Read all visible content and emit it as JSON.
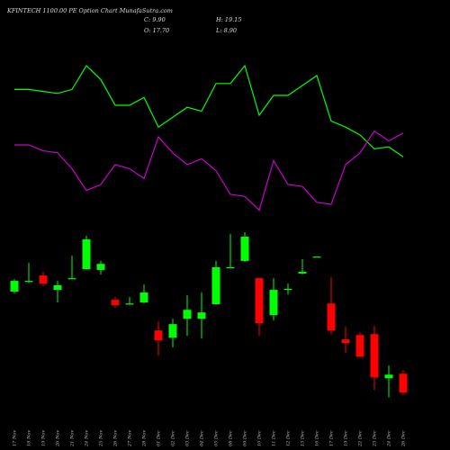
{
  "chart_data": {
    "type": "candlestick",
    "title": "KFINTECH 1100.00 PE Option Chart MunafaSutra.com",
    "summary": [
      "C: 9.90",
      "H: 19.15",
      "O: 17.70",
      "L: 8.90"
    ],
    "categories": [
      "17 Nov",
      "18 Nov",
      "19 Nov",
      "20 Nov",
      "21 Nov",
      "24 Nov",
      "25 Nov",
      "26 Nov",
      "27 Nov",
      "28 Nov",
      "01 Dec",
      "02 Dec",
      "03 Dec",
      "04 Dec",
      "05 Dec",
      "08 Dec",
      "09 Dec",
      "10 Dec",
      "11 Dec",
      "12 Dec",
      "15 Dec",
      "16 Dec",
      "17 Dec",
      "19 Dec",
      "22 Dec",
      "23 Dec",
      "24 Dec",
      "26 Dec"
    ],
    "open": [
      51.5,
      55.5,
      58.1,
      52.2,
      56.6,
      60.7,
      60.4,
      48.1,
      46.3,
      47.0,
      35.5,
      32.5,
      40.3,
      40.3,
      46.3,
      61.2,
      64.1,
      57.0,
      41.8,
      52.2,
      58.9,
      65.6,
      46.6,
      31.8,
      33.6,
      34.0,
      15.8,
      17.7
    ],
    "close": [
      55.9,
      55.9,
      54.8,
      54.1,
      57.0,
      73.0,
      62.9,
      45.9,
      46.6,
      51.1,
      31.4,
      38.1,
      44.0,
      42.9,
      61.5,
      61.5,
      74.1,
      38.5,
      52.2,
      52.6,
      59.6,
      65.9,
      35.5,
      30.3,
      24.7,
      16.2,
      17.3,
      9.9
    ],
    "high": [
      56.6,
      63.3,
      59.6,
      55.9,
      66.3,
      74.5,
      64.1,
      49.2,
      49.2,
      54.4,
      39.2,
      40.3,
      50.0,
      51.1,
      64.1,
      75.2,
      75.9,
      57.0,
      57.0,
      54.8,
      64.8,
      65.9,
      57.4,
      37.0,
      34.8,
      37.4,
      21.0,
      19.15
    ],
    "low": [
      50.7,
      55.2,
      53.7,
      47.0,
      56.6,
      60.4,
      58.5,
      44.8,
      46.0,
      46.6,
      25.1,
      28.5,
      33.3,
      32.2,
      46.0,
      61.2,
      63.7,
      33.3,
      39.6,
      50.3,
      58.5,
      65.6,
      34.0,
      26.2,
      24.4,
      11.0,
      8.0,
      8.9
    ],
    "up_color": "#00ff00",
    "down_color": "#ff0000",
    "ylim": [
      0,
      100
    ],
    "lines": [
      {
        "color": "#00ff00",
        "values": [
          73,
          73,
          72,
          71,
          73,
          85,
          78,
          65,
          65,
          69,
          54,
          59,
          64,
          62,
          76,
          76,
          85,
          60,
          70,
          70,
          75,
          80,
          57,
          54,
          50,
          43,
          44,
          39
        ]
      },
      {
        "color": "#cc00cc",
        "values": [
          45,
          45,
          42,
          41,
          33,
          22,
          25,
          35,
          33,
          28,
          49,
          41,
          35,
          38,
          32,
          20,
          19,
          12,
          37,
          25,
          24,
          16,
          15,
          35,
          41,
          52,
          47,
          51
        ]
      }
    ],
    "lines_ylim": [
      0,
      100
    ]
  }
}
